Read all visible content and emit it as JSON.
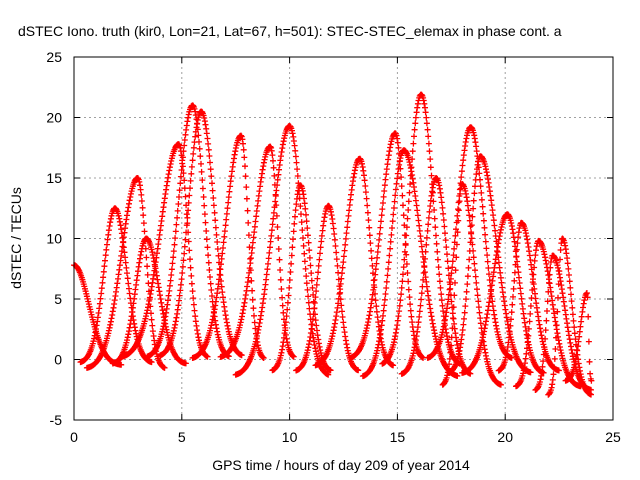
{
  "chart_data": {
    "type": "scatter",
    "title": "dSTEC Iono. truth (kir0, Lon=21, Lat=67, h=501): STEC-STEC_elemax in phase cont. a",
    "xlabel": "GPS time / hours of day 209 of year 2014",
    "ylabel": "dSTEC  / TECUs",
    "xlim": [
      0,
      25
    ],
    "ylim": [
      -5,
      25
    ],
    "x_ticks": [
      0,
      5,
      10,
      15,
      20,
      25
    ],
    "y_ticks": [
      -5,
      0,
      5,
      10,
      15,
      20,
      25
    ],
    "grid": true,
    "marker": "plus",
    "color": "#ff0000",
    "passes": [
      {
        "start": 0.0,
        "end": 2.2,
        "peak_x": 0.0,
        "peak_y": 7.8,
        "min_y": -0.5
      },
      {
        "start": 0.3,
        "end": 3.6,
        "peak_x": 1.9,
        "peak_y": 12.5,
        "min_y": -0.3
      },
      {
        "start": 0.6,
        "end": 4.2,
        "peak_x": 2.95,
        "peak_y": 15.0,
        "min_y": -0.8
      },
      {
        "start": 1.8,
        "end": 5.2,
        "peak_x": 3.35,
        "peak_y": 10.0,
        "min_y": -0.4
      },
      {
        "start": 2.2,
        "end": 6.2,
        "peak_x": 4.85,
        "peak_y": 17.8,
        "min_y": 0.1
      },
      {
        "start": 3.4,
        "end": 7.2,
        "peak_x": 5.5,
        "peak_y": 21.0,
        "min_y": 0.1
      },
      {
        "start": 4.0,
        "end": 7.8,
        "peak_x": 5.9,
        "peak_y": 20.5,
        "min_y": 0.2
      },
      {
        "start": 5.5,
        "end": 8.8,
        "peak_x": 7.75,
        "peak_y": 18.5,
        "min_y": 0.0
      },
      {
        "start": 6.8,
        "end": 10.2,
        "peak_x": 9.1,
        "peak_y": 17.6,
        "min_y": 0.1
      },
      {
        "start": 7.5,
        "end": 11.8,
        "peak_x": 10.0,
        "peak_y": 19.3,
        "min_y": -1.4
      },
      {
        "start": 9.2,
        "end": 11.9,
        "peak_x": 10.5,
        "peak_y": 14.4,
        "min_y": -1.0
      },
      {
        "start": 10.3,
        "end": 13.2,
        "peak_x": 11.8,
        "peak_y": 12.7,
        "min_y": -1.0
      },
      {
        "start": 11.2,
        "end": 14.8,
        "peak_x": 13.25,
        "peak_y": 16.6,
        "min_y": -0.6
      },
      {
        "start": 12.8,
        "end": 16.2,
        "peak_x": 14.9,
        "peak_y": 18.7,
        "min_y": 0.0
      },
      {
        "start": 13.4,
        "end": 17.8,
        "peak_x": 15.3,
        "peak_y": 17.3,
        "min_y": -1.5
      },
      {
        "start": 14.3,
        "end": 17.9,
        "peak_x": 16.1,
        "peak_y": 21.9,
        "min_y": -0.5
      },
      {
        "start": 15.2,
        "end": 18.4,
        "peak_x": 16.8,
        "peak_y": 15.0,
        "min_y": -1.3
      },
      {
        "start": 16.4,
        "end": 20.3,
        "peak_x": 18.4,
        "peak_y": 19.2,
        "min_y": 0.0
      },
      {
        "start": 17.4,
        "end": 21.2,
        "peak_x": 18.85,
        "peak_y": 16.8,
        "min_y": -1.2
      },
      {
        "start": 17.1,
        "end": 19.8,
        "peak_x": 18.0,
        "peak_y": 14.5,
        "min_y": -2.2
      },
      {
        "start": 18.0,
        "end": 21.8,
        "peak_x": 20.1,
        "peak_y": 12.0,
        "min_y": -1.2
      },
      {
        "start": 19.7,
        "end": 22.5,
        "peak_x": 20.75,
        "peak_y": 11.3,
        "min_y": -1.0
      },
      {
        "start": 20.5,
        "end": 23.5,
        "peak_x": 21.55,
        "peak_y": 9.8,
        "min_y": -2.3
      },
      {
        "start": 21.4,
        "end": 24.0,
        "peak_x": 22.2,
        "peak_y": 8.6,
        "min_y": -2.6
      },
      {
        "start": 22.0,
        "end": 24.0,
        "peak_x": 22.65,
        "peak_y": 10.0,
        "min_y": -3.0
      },
      {
        "start": 22.8,
        "end": 24.0,
        "peak_x": 23.8,
        "peak_y": 5.5,
        "min_y": -1.8
      }
    ]
  }
}
